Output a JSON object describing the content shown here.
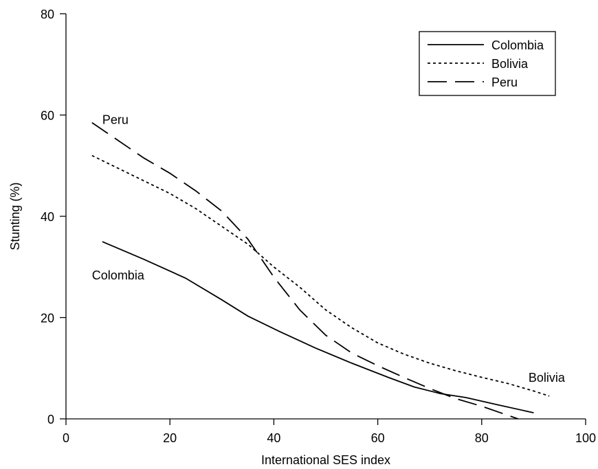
{
  "chart_data": {
    "type": "line",
    "xlabel": "International SES index",
    "ylabel": "Stunting (%)",
    "xlim": [
      0,
      100
    ],
    "ylim": [
      0,
      80
    ],
    "xticks": [
      0,
      20,
      40,
      60,
      80,
      100
    ],
    "yticks": [
      0,
      20,
      40,
      60,
      80
    ],
    "grid": false,
    "legend_position": "top-right",
    "series": [
      {
        "name": "Colombia",
        "style": "solid",
        "x": [
          7,
          15,
          23,
          30,
          35,
          41,
          48,
          55,
          62,
          67,
          72,
          77,
          83,
          90
        ],
        "y": [
          35,
          31.5,
          27.8,
          23.5,
          20.3,
          17.3,
          14,
          11,
          8.2,
          6.3,
          5,
          4.2,
          2.8,
          1.2
        ]
      },
      {
        "name": "Bolivia",
        "style": "dotted",
        "x": [
          5,
          10,
          15,
          20,
          25,
          30,
          35,
          40,
          45,
          50,
          55,
          60,
          65,
          70,
          75,
          80,
          85,
          90,
          93
        ],
        "y": [
          52,
          49.5,
          47,
          44.5,
          41.5,
          38,
          34.5,
          30,
          26,
          21.5,
          18,
          15,
          12.8,
          11,
          9.5,
          8.2,
          7,
          5.5,
          4.5
        ]
      },
      {
        "name": "Peru",
        "style": "dashed",
        "x": [
          5,
          10,
          15,
          20,
          25,
          30,
          35,
          40,
          45,
          50,
          55,
          60,
          65,
          70,
          75,
          80,
          87
        ],
        "y": [
          58.5,
          55,
          51.5,
          48.5,
          45,
          41,
          35.5,
          28,
          21.5,
          16.5,
          13,
          10.5,
          8.2,
          6,
          4,
          2.5,
          0
        ]
      }
    ],
    "annotations": [
      {
        "text": "Peru",
        "x": 7,
        "y": 59.2
      },
      {
        "text": "Colombia",
        "x": 5,
        "y": 28.5
      },
      {
        "text": "Bolivia",
        "x": 89,
        "y": 8.3
      }
    ]
  }
}
